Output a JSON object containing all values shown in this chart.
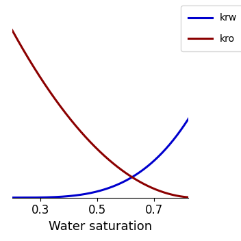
{
  "xlabel": "Water saturation",
  "line_blue_color": "#0000cd",
  "line_red_color": "#8b0000",
  "line_width": 2.2,
  "xlim": [
    0.2,
    0.82
  ],
  "ylim": [
    0.0,
    1.15
  ],
  "xticks": [
    0.3,
    0.5,
    0.7
  ],
  "legend_labels": [
    "krw",
    "kro"
  ],
  "Swc": 0.2,
  "Sor": 0.15,
  "krw_max": 0.55,
  "kro_max": 1.0,
  "nw": 3.5,
  "no": 2.0,
  "figsize": [
    3.52,
    3.52
  ],
  "dpi": 100,
  "xlabel_fontsize": 13,
  "tick_fontsize": 12
}
